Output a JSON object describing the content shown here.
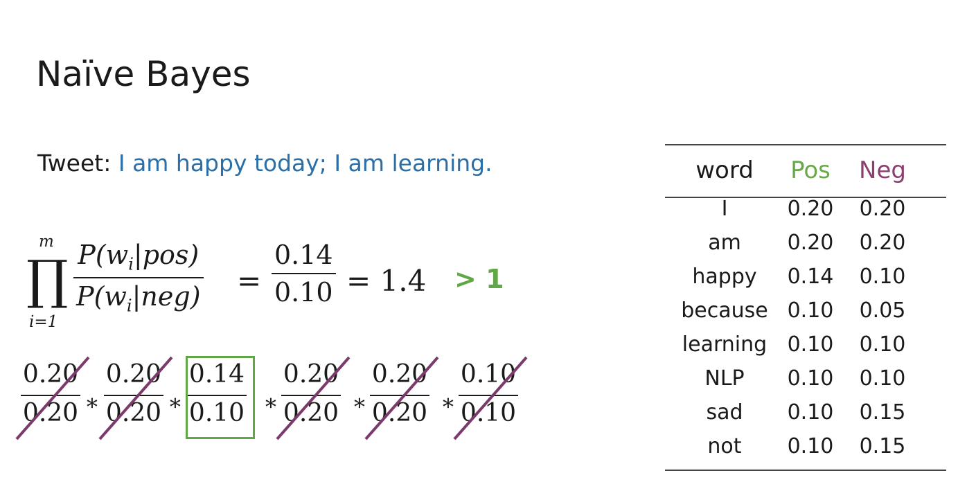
{
  "title": "Naïve Bayes",
  "tweet": {
    "label": "Tweet: ",
    "text": "I am happy today;  I am learning."
  },
  "formula": {
    "prod_upper": "m",
    "prod_lower": "i=1",
    "ratio_num": "P(w_i|pos)",
    "ratio_den": "P(w_i|neg)",
    "value_num": "0.14",
    "value_den": "0.10",
    "result": "= 1.4",
    "comparison": "> 1"
  },
  "expansion": [
    {
      "num": "0.20",
      "den": "0.20",
      "cancelled": true
    },
    {
      "num": "0.20",
      "den": "0.20",
      "cancelled": true
    },
    {
      "num": "0.14",
      "den": "0.10",
      "cancelled": false,
      "highlighted": true
    },
    {
      "num": "0.20",
      "den": "0.20",
      "cancelled": true
    },
    {
      "num": "0.20",
      "den": "0.20",
      "cancelled": true
    },
    {
      "num": "0.10",
      "den": "0.10",
      "cancelled": true
    }
  ],
  "table": {
    "headers": {
      "word": "word",
      "pos": "Pos",
      "neg": "Neg"
    },
    "rows": [
      {
        "word": "I",
        "pos": "0.20",
        "neg": "0.20"
      },
      {
        "word": "am",
        "pos": "0.20",
        "neg": "0.20"
      },
      {
        "word": "happy",
        "pos": "0.14",
        "neg": "0.10"
      },
      {
        "word": "because",
        "pos": "0.10",
        "neg": "0.05"
      },
      {
        "word": "learning",
        "pos": "0.10",
        "neg": "0.10"
      },
      {
        "word": "NLP",
        "pos": "0.10",
        "neg": "0.10"
      },
      {
        "word": "sad",
        "pos": "0.10",
        "neg": "0.15"
      },
      {
        "word": "not",
        "pos": "0.10",
        "neg": "0.15"
      }
    ]
  },
  "colors": {
    "tweet_text": "#2a6fa8",
    "pos": "#6ba84a",
    "neg": "#8a3f6e",
    "highlight_box": "#62a745",
    "strike": "#7a3a6a"
  }
}
